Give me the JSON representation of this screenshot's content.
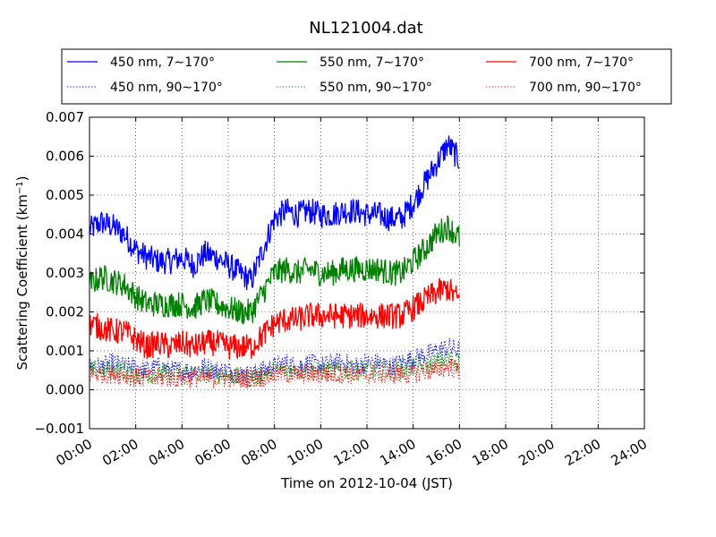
{
  "chart_data": {
    "type": "line",
    "title": "NL121004.dat",
    "xlabel": "Time on 2012-10-04 (JST)",
    "ylabel": "Scattering Coefficient (km",
    "ylabel_sup": "−1",
    "ylabel_close": ")",
    "xlim_hours": [
      0,
      24
    ],
    "ylim": [
      -0.001,
      0.007
    ],
    "x_ticks": [
      {
        "hour": 0,
        "label": "00:00"
      },
      {
        "hour": 2,
        "label": "02:00"
      },
      {
        "hour": 4,
        "label": "04:00"
      },
      {
        "hour": 6,
        "label": "06:00"
      },
      {
        "hour": 8,
        "label": "08:00"
      },
      {
        "hour": 10,
        "label": "10:00"
      },
      {
        "hour": 12,
        "label": "12:00"
      },
      {
        "hour": 14,
        "label": "14:00"
      },
      {
        "hour": 16,
        "label": "16:00"
      },
      {
        "hour": 18,
        "label": "18:00"
      },
      {
        "hour": 20,
        "label": "20:00"
      },
      {
        "hour": 22,
        "label": "22:00"
      },
      {
        "hour": 24,
        "label": "24:00"
      }
    ],
    "y_ticks": [
      {
        "value": -0.001,
        "label": "−0.001"
      },
      {
        "value": 0.0,
        "label": "0.000"
      },
      {
        "value": 0.001,
        "label": "0.001"
      },
      {
        "value": 0.002,
        "label": "0.002"
      },
      {
        "value": 0.003,
        "label": "0.003"
      },
      {
        "value": 0.004,
        "label": "0.004"
      },
      {
        "value": 0.005,
        "label": "0.005"
      },
      {
        "value": 0.006,
        "label": "0.006"
      },
      {
        "value": 0.007,
        "label": "0.007"
      }
    ],
    "grid": true,
    "legend_position": "top",
    "x_hours": [
      0,
      0.5,
      1,
      1.5,
      2,
      2.5,
      3,
      3.5,
      4,
      4.5,
      5,
      5.5,
      6,
      6.5,
      7,
      7.5,
      8,
      8.5,
      9,
      9.5,
      10,
      10.5,
      11,
      11.5,
      12,
      12.5,
      13,
      13.5,
      14,
      14.5,
      15,
      15.5,
      16
    ],
    "series": [
      {
        "name": "450 nm, 7∼170°",
        "color": "#0000ff",
        "dash": "solid",
        "values": [
          0.0041,
          0.0043,
          0.0042,
          0.004,
          0.0036,
          0.0034,
          0.0033,
          0.0033,
          0.0034,
          0.0032,
          0.0035,
          0.0034,
          0.0032,
          0.003,
          0.0028,
          0.0036,
          0.0044,
          0.0046,
          0.0045,
          0.0046,
          0.0045,
          0.0045,
          0.0046,
          0.0046,
          0.0045,
          0.0045,
          0.0044,
          0.0044,
          0.0048,
          0.0053,
          0.0058,
          0.0063,
          0.0059
        ]
      },
      {
        "name": "450 nm, 90∼170°",
        "color": "#0000ff",
        "dash": "dotted",
        "values": [
          0.0006,
          0.0006,
          0.0007,
          0.0006,
          0.0006,
          0.0005,
          0.0006,
          0.0005,
          0.0005,
          0.0005,
          0.0006,
          0.0005,
          0.0005,
          0.0004,
          0.0004,
          0.0005,
          0.0006,
          0.0007,
          0.0006,
          0.0007,
          0.0006,
          0.0007,
          0.0007,
          0.0006,
          0.0007,
          0.0007,
          0.0006,
          0.0007,
          0.0008,
          0.0009,
          0.001,
          0.0011,
          0.001
        ]
      },
      {
        "name": "550 nm, 7∼170°",
        "color": "#008000",
        "dash": "solid",
        "values": [
          0.0027,
          0.0029,
          0.0028,
          0.0027,
          0.0024,
          0.0022,
          0.0022,
          0.0022,
          0.0022,
          0.0021,
          0.0023,
          0.0022,
          0.0021,
          0.002,
          0.002,
          0.0025,
          0.003,
          0.0031,
          0.003,
          0.0031,
          0.003,
          0.003,
          0.0031,
          0.0031,
          0.0031,
          0.0031,
          0.003,
          0.003,
          0.0033,
          0.0036,
          0.004,
          0.0042,
          0.0039
        ]
      },
      {
        "name": "550 nm, 90∼170°",
        "color": "#008000",
        "dash": "dotted",
        "values": [
          0.0005,
          0.0005,
          0.0005,
          0.0005,
          0.0004,
          0.0004,
          0.0004,
          0.0004,
          0.0004,
          0.0004,
          0.0004,
          0.0004,
          0.0004,
          0.0003,
          0.0003,
          0.0004,
          0.0005,
          0.0005,
          0.0005,
          0.0005,
          0.0005,
          0.0005,
          0.0005,
          0.0005,
          0.0005,
          0.0005,
          0.0005,
          0.0005,
          0.0006,
          0.0006,
          0.0007,
          0.0008,
          0.0007
        ]
      },
      {
        "name": "700 nm, 7∼170°",
        "color": "#ff0000",
        "dash": "solid",
        "values": [
          0.0017,
          0.0016,
          0.0015,
          0.0015,
          0.0013,
          0.0011,
          0.0012,
          0.0011,
          0.0012,
          0.0011,
          0.0012,
          0.0012,
          0.0011,
          0.0011,
          0.0011,
          0.0014,
          0.0017,
          0.0018,
          0.0018,
          0.0019,
          0.0019,
          0.0019,
          0.0019,
          0.0019,
          0.0019,
          0.0019,
          0.0019,
          0.0019,
          0.0021,
          0.0023,
          0.0025,
          0.0026,
          0.0023
        ]
      },
      {
        "name": "700 nm, 90∼170°",
        "color": "#ff0000",
        "dash": "dotted",
        "values": [
          0.0004,
          0.0004,
          0.0004,
          0.0004,
          0.0003,
          0.0003,
          0.0003,
          0.0003,
          0.0003,
          0.0003,
          0.0003,
          0.0003,
          0.0003,
          0.0003,
          0.0003,
          0.0003,
          0.0004,
          0.0004,
          0.0004,
          0.0004,
          0.0004,
          0.0004,
          0.0004,
          0.0004,
          0.0004,
          0.0004,
          0.0004,
          0.0004,
          0.0004,
          0.0005,
          0.0005,
          0.0006,
          0.0005
        ]
      }
    ]
  }
}
